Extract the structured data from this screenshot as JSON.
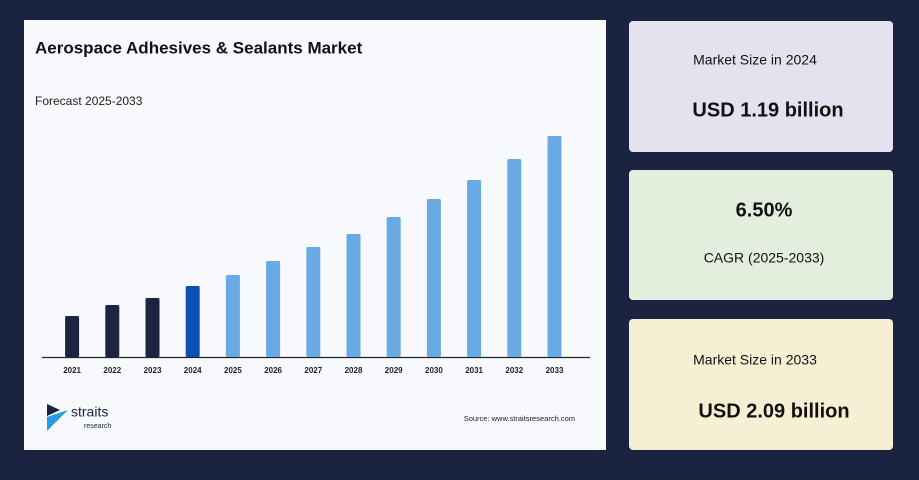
{
  "chart_data": {
    "type": "bar",
    "title": "Aerospace Adhesives & Sealants Market",
    "subtitle": "Forecast 2025-2033",
    "categories": [
      "2021",
      "2022",
      "2023",
      "2024",
      "2025",
      "2026",
      "2027",
      "2028",
      "2029",
      "2030",
      "2031",
      "2032",
      "2033"
    ],
    "values": [
      41,
      52,
      59,
      71,
      82,
      96,
      110,
      123,
      140,
      158,
      177,
      198,
      221
    ],
    "colors": [
      "#1b2440",
      "#1b2440",
      "#1b2440",
      "#0b4fb3",
      "#6aaae4",
      "#6aaae4",
      "#6aaae4",
      "#6aaae4",
      "#6aaae4",
      "#6aaae4",
      "#6aaae4",
      "#6aaae4",
      "#6aaae4"
    ],
    "source": "Source: www.straitsresearch.com"
  },
  "logo": {
    "name": "straits",
    "sub": "research"
  },
  "cards": [
    {
      "label": "Market Size in 2024",
      "value": "USD 1.19 billion"
    },
    {
      "value": "6.50%",
      "label": "CAGR (2025-2033)"
    },
    {
      "label": "Market Size in 2033",
      "value": "USD 2.09 billion"
    }
  ]
}
